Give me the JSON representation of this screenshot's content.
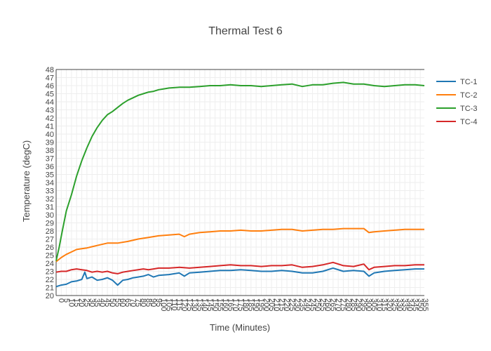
{
  "chart_data": {
    "type": "line",
    "title": "Thermal Test 6",
    "xlabel": "Time (Minutes)",
    "ylabel": "Temperature (degC)",
    "xlim": [
      0,
      359
    ],
    "ylim": [
      20,
      48
    ],
    "x_tick_step": 5,
    "y_ticks": [
      20,
      21,
      22,
      23,
      24,
      25,
      26,
      27,
      28,
      29,
      30,
      31,
      32,
      33,
      34,
      35,
      36,
      37,
      38,
      39,
      40,
      41,
      42,
      43,
      44,
      45,
      46,
      47,
      48
    ],
    "grid": true,
    "legend_position": "right",
    "series": [
      {
        "name": "TC-1",
        "color": "#1f77b4",
        "x": [
          0,
          5,
          10,
          15,
          20,
          25,
          28,
          30,
          35,
          40,
          45,
          50,
          55,
          60,
          65,
          70,
          75,
          80,
          85,
          90,
          95,
          100,
          110,
          120,
          125,
          130,
          140,
          150,
          160,
          170,
          180,
          190,
          200,
          210,
          220,
          230,
          240,
          250,
          260,
          270,
          280,
          290,
          300,
          305,
          310,
          320,
          330,
          340,
          350,
          359
        ],
        "y": [
          21.1,
          21.3,
          21.4,
          21.7,
          21.8,
          22.0,
          22.9,
          22.1,
          22.3,
          21.9,
          22.0,
          22.2,
          21.9,
          21.3,
          21.9,
          22.0,
          22.2,
          22.3,
          22.4,
          22.6,
          22.3,
          22.5,
          22.6,
          22.8,
          22.4,
          22.8,
          22.9,
          23.0,
          23.1,
          23.1,
          23.2,
          23.1,
          23.0,
          23.0,
          23.1,
          23.0,
          22.8,
          22.8,
          23.0,
          23.4,
          23.0,
          23.1,
          23.0,
          22.4,
          22.8,
          23.0,
          23.1,
          23.2,
          23.3,
          23.3
        ]
      },
      {
        "name": "TC-2",
        "color": "#ff7f0e",
        "x": [
          0,
          5,
          10,
          15,
          20,
          25,
          30,
          40,
          50,
          60,
          70,
          80,
          90,
          100,
          110,
          120,
          125,
          130,
          140,
          150,
          160,
          170,
          180,
          190,
          200,
          210,
          220,
          230,
          240,
          250,
          260,
          270,
          280,
          290,
          300,
          305,
          310,
          320,
          330,
          340,
          350,
          359
        ],
        "y": [
          24.2,
          24.7,
          25.1,
          25.4,
          25.7,
          25.8,
          25.9,
          26.2,
          26.5,
          26.5,
          26.7,
          27.0,
          27.2,
          27.4,
          27.5,
          27.6,
          27.3,
          27.6,
          27.8,
          27.9,
          28.0,
          28.0,
          28.1,
          28.0,
          28.0,
          28.1,
          28.2,
          28.2,
          28.0,
          28.1,
          28.2,
          28.2,
          28.3,
          28.3,
          28.3,
          27.8,
          27.9,
          28.0,
          28.1,
          28.2,
          28.2,
          28.2
        ]
      },
      {
        "name": "TC-3",
        "color": "#2ca02c",
        "x": [
          0,
          3,
          6,
          10,
          15,
          20,
          25,
          30,
          35,
          40,
          45,
          50,
          55,
          60,
          65,
          70,
          75,
          80,
          85,
          90,
          95,
          100,
          105,
          110,
          120,
          130,
          140,
          150,
          160,
          170,
          180,
          190,
          200,
          210,
          220,
          230,
          240,
          250,
          260,
          270,
          280,
          290,
          300,
          310,
          320,
          330,
          340,
          350,
          359
        ],
        "y": [
          24.3,
          26.0,
          28.0,
          30.5,
          32.5,
          34.8,
          36.7,
          38.3,
          39.7,
          40.8,
          41.7,
          42.4,
          42.8,
          43.3,
          43.8,
          44.2,
          44.5,
          44.8,
          45.0,
          45.2,
          45.3,
          45.5,
          45.6,
          45.7,
          45.8,
          45.8,
          45.9,
          46.0,
          46.0,
          46.1,
          46.0,
          46.0,
          45.9,
          46.0,
          46.1,
          46.2,
          45.9,
          46.1,
          46.1,
          46.3,
          46.4,
          46.2,
          46.2,
          46.0,
          45.9,
          46.0,
          46.1,
          46.1,
          46.0
        ]
      },
      {
        "name": "TC-4",
        "color": "#d62728",
        "x": [
          0,
          5,
          10,
          15,
          20,
          25,
          30,
          35,
          40,
          45,
          50,
          55,
          60,
          65,
          70,
          75,
          80,
          85,
          90,
          95,
          100,
          110,
          120,
          130,
          140,
          150,
          160,
          170,
          180,
          190,
          200,
          210,
          220,
          230,
          240,
          250,
          260,
          270,
          280,
          290,
          300,
          305,
          310,
          320,
          330,
          340,
          350,
          359
        ],
        "y": [
          22.9,
          23.0,
          23.0,
          23.2,
          23.3,
          23.2,
          23.1,
          22.9,
          23.0,
          22.9,
          23.0,
          22.8,
          22.7,
          22.9,
          23.0,
          23.1,
          23.2,
          23.3,
          23.2,
          23.3,
          23.4,
          23.4,
          23.5,
          23.4,
          23.5,
          23.6,
          23.7,
          23.8,
          23.7,
          23.7,
          23.6,
          23.7,
          23.7,
          23.8,
          23.5,
          23.6,
          23.8,
          24.1,
          23.7,
          23.6,
          23.9,
          23.2,
          23.5,
          23.6,
          23.7,
          23.7,
          23.8,
          23.8
        ]
      }
    ]
  }
}
